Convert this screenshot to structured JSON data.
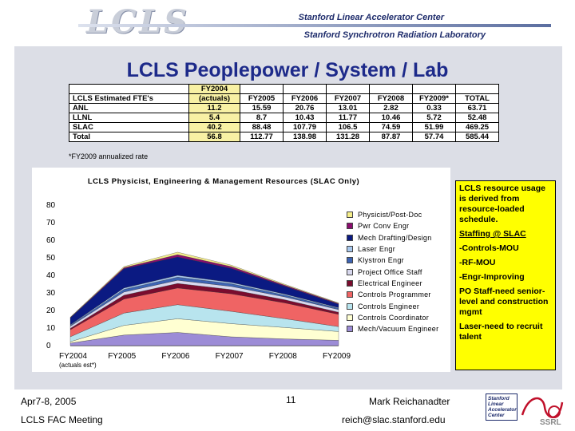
{
  "header": {
    "logo": "LCLS",
    "org_line1": "Stanford Linear Accelerator Center",
    "org_line2": "Stanford Synchrotron Radiation Laboratory"
  },
  "slide_title": "LCLS Peoplepower / System / Lab",
  "fte_table": {
    "header_row1": [
      "",
      "FY2004",
      "",
      "",
      "",
      "",
      "",
      ""
    ],
    "header_row2": [
      "LCLS Estimated FTE's",
      "(actuals)",
      "FY2005",
      "FY2006",
      "FY2007",
      "FY2008",
      "FY2009*",
      "TOTAL"
    ],
    "rows": [
      [
        "ANL",
        "11.2",
        "15.59",
        "20.76",
        "13.01",
        "2.82",
        "0.33",
        "63.71"
      ],
      [
        "LLNL",
        "5.4",
        "8.7",
        "10.43",
        "11.77",
        "10.46",
        "5.72",
        "52.48"
      ],
      [
        "SLAC",
        "40.2",
        "88.48",
        "107.79",
        "106.5",
        "74.59",
        "51.99",
        "469.25"
      ],
      [
        "Total",
        "56.8",
        "112.77",
        "138.98",
        "131.28",
        "87.87",
        "57.74",
        "585.44"
      ]
    ],
    "footnote": "*FY2009 annualized rate"
  },
  "chart_data": {
    "type": "area",
    "title": "LCLS Physicist, Engineering & Management Resources (SLAC Only)",
    "categories": [
      "FY2004\n(actuals est*)",
      "FY2005",
      "FY2006",
      "FY2007",
      "FY2008",
      "FY2009"
    ],
    "y_ticks": [
      "0",
      "10",
      "20",
      "30",
      "40",
      "50",
      "60",
      "70",
      "80"
    ],
    "ylim": [
      0,
      80
    ],
    "legend_position": "right",
    "series": [
      {
        "name": "Physicist/Post-Doc",
        "color": "#f5ee8a",
        "values": [
          0.2,
          0.6,
          1.4,
          0.8,
          0.5,
          0.3
        ]
      },
      {
        "name": "Pwr Conv Engr",
        "color": "#8a0c6e",
        "values": [
          0.2,
          0.6,
          1.3,
          1.0,
          0.6,
          0.4
        ]
      },
      {
        "name": "Mech Drafting/Design",
        "color": "#0b1a82",
        "values": [
          4.0,
          11.0,
          10.5,
          8.0,
          4.5,
          2.0
        ]
      },
      {
        "name": "Laser Engr",
        "color": "#a8c8ee",
        "values": [
          0.3,
          0.8,
          1.0,
          0.8,
          0.6,
          0.4
        ]
      },
      {
        "name": "Klystron Engr",
        "color": "#3d64b4",
        "values": [
          0.5,
          1.5,
          1.8,
          1.5,
          1.0,
          0.7
        ]
      },
      {
        "name": "Project Office Staff",
        "color": "#d8d8ee",
        "values": [
          1.2,
          1.8,
          1.8,
          1.8,
          1.6,
          1.5
        ]
      },
      {
        "name": "Electrical Engineer",
        "color": "#7a0c2e",
        "values": [
          0.8,
          2.2,
          2.6,
          2.4,
          1.8,
          1.2
        ]
      },
      {
        "name": "Controls Programmer",
        "color": "#ef6464",
        "values": [
          4.0,
          8.0,
          9.5,
          10.0,
          9.0,
          7.0
        ]
      },
      {
        "name": "Controls Engineer",
        "color": "#b8e4ee",
        "values": [
          2.8,
          7.0,
          8.0,
          7.0,
          5.0,
          2.8
        ]
      },
      {
        "name": "Controls Coordinator",
        "color": "#ffffd2",
        "values": [
          0.8,
          5.5,
          7.8,
          7.5,
          6.5,
          5.0
        ]
      },
      {
        "name": "Mech/Vacuum Engineer",
        "color": "#9c8cd6",
        "values": [
          1.4,
          6.0,
          7.5,
          5.0,
          3.8,
          3.0
        ]
      }
    ]
  },
  "notes": [
    "LCLS resource usage is derived from resource-loaded schedule.",
    "Staffing @ SLAC",
    "-Controls-MOU",
    "-RF-MOU",
    "-Engr-Improving",
    "PO Staff-need senior-level and construction mgmt",
    "Laser-need to recruit talent"
  ],
  "footer": {
    "date": "Apr7-8, 2005",
    "event": "LCLS FAC Meeting",
    "page": "11",
    "author": "Mark Reichanadter",
    "email": "reich@slac.stanford.edu",
    "seal_text": [
      "Stanford",
      "Linear",
      "Accelerator",
      "Center"
    ],
    "lab_mark": "SSRL"
  }
}
